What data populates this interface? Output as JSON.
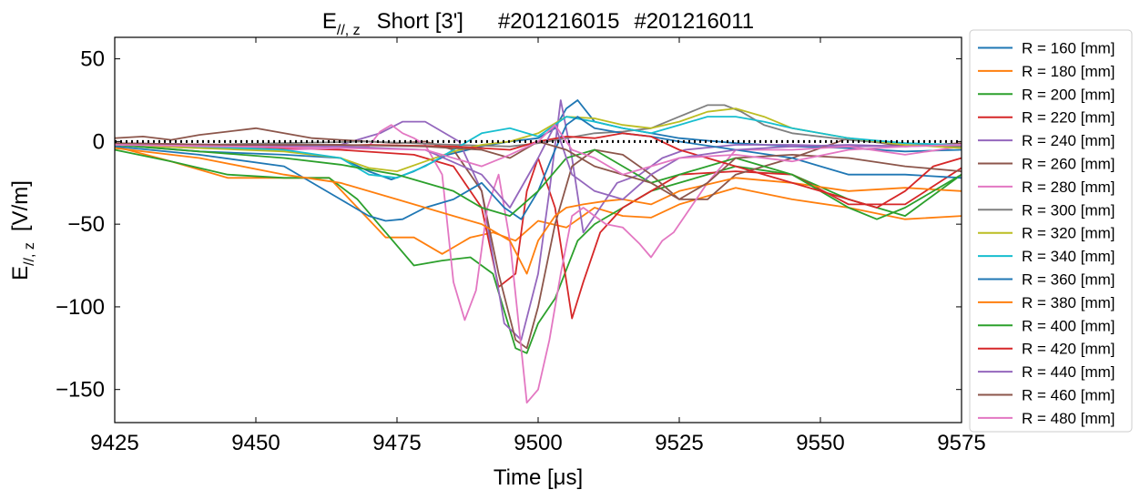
{
  "chart_data": {
    "type": "line",
    "title": {
      "main": "E",
      "main_sub": "//, z",
      "rest": "Short [3']",
      "shot1": "#201216015",
      "shot2": "#201216011"
    },
    "xlabel": "Time [μs]",
    "ylabel": {
      "main": "E",
      "sub": "//, z",
      "unit": "[V/m]"
    },
    "xlim": [
      9425,
      9575
    ],
    "ylim": [
      -170,
      63
    ],
    "xticks": [
      9425,
      9450,
      9475,
      9500,
      9525,
      9550,
      9575
    ],
    "yticks": [
      50,
      0,
      -50,
      -100,
      -150
    ],
    "ytick_labels": [
      "50",
      "0",
      "−50",
      "−100",
      "−150"
    ],
    "grid": false,
    "legend_position": "outside-right",
    "colors": [
      "#1f77b4",
      "#ff7f0e",
      "#2ca02c",
      "#d62728",
      "#9467bd",
      "#8c564b",
      "#e377c2",
      "#7f7f7f",
      "#bcbd22",
      "#17becf"
    ],
    "zero_line": {
      "y": 0,
      "style": "dotted",
      "color": "#000000"
    },
    "series": [
      {
        "name": "R = 160  [mm]",
        "x": [
          9425,
          9440,
          9455,
          9465,
          9470,
          9474,
          9478,
          9484,
          9490,
          9495,
          9500,
          9503,
          9505,
          9507,
          9510,
          9515,
          9520,
          9525,
          9535,
          9545,
          9555,
          9565,
          9575
        ],
        "y": [
          -2,
          -6,
          -8,
          -10,
          -18,
          -23,
          -18,
          -8,
          -3,
          0,
          2,
          8,
          20,
          25,
          12,
          8,
          5,
          2,
          -1,
          -3,
          -4,
          -6,
          -5
        ]
      },
      {
        "name": "R = 180  [mm]",
        "x": [
          9425,
          9435,
          9445,
          9455,
          9463,
          9468,
          9473,
          9478,
          9483,
          9488,
          9492,
          9496,
          9500,
          9505,
          9510,
          9515,
          9520,
          9525,
          9535,
          9545,
          9555,
          9565,
          9575
        ],
        "y": [
          -3,
          -12,
          -22,
          -22,
          -22,
          -40,
          -58,
          -58,
          -68,
          -58,
          -55,
          -60,
          -48,
          -52,
          -40,
          -45,
          -46,
          -38,
          -28,
          -35,
          -40,
          -47,
          -45
        ]
      },
      {
        "name": "R = 200  [mm]",
        "x": [
          9425,
          9435,
          9445,
          9455,
          9463,
          9468,
          9473,
          9478,
          9483,
          9488,
          9492,
          9496,
          9498,
          9500,
          9503,
          9507,
          9510,
          9515,
          9520,
          9525,
          9535,
          9545,
          9555,
          9565,
          9575
        ],
        "y": [
          -5,
          -12,
          -20,
          -22,
          -22,
          -35,
          -55,
          -75,
          -72,
          -70,
          -80,
          -125,
          -128,
          -110,
          -95,
          -60,
          -50,
          -40,
          -30,
          -25,
          -15,
          -20,
          -35,
          -45,
          -20
        ]
      },
      {
        "name": "R = 220  [mm]",
        "x": [
          9425,
          9445,
          9465,
          9478,
          9485,
          9490,
          9493,
          9496,
          9498,
          9500,
          9503,
          9506,
          9508,
          9511,
          9515,
          9520,
          9525,
          9535,
          9545,
          9555,
          9565,
          9575
        ],
        "y": [
          -1,
          -3,
          -5,
          -8,
          -15,
          -40,
          -88,
          -80,
          -30,
          -10,
          -40,
          -107,
          -85,
          -55,
          -40,
          -30,
          -20,
          -18,
          -20,
          -38,
          -38,
          -16
        ]
      },
      {
        "name": "R = 240  [mm]",
        "x": [
          9425,
          9445,
          9465,
          9472,
          9476,
          9480,
          9486,
          9490,
          9494,
          9497,
          9500,
          9502,
          9504,
          9506,
          9508,
          9511,
          9514,
          9518,
          9522,
          9526,
          9535,
          9545,
          9555,
          9575
        ],
        "y": [
          -1,
          -2,
          -2,
          5,
          12,
          12,
          0,
          -30,
          -110,
          -120,
          -80,
          -30,
          25,
          -10,
          -55,
          -40,
          -25,
          -20,
          -10,
          -5,
          -2,
          -2,
          -3,
          -2
        ]
      },
      {
        "name": "R = 260  [mm]",
        "x": [
          9425,
          9430,
          9435,
          9440,
          9445,
          9450,
          9455,
          9460,
          9465,
          9470,
          9475,
          9480,
          9485,
          9490,
          9493,
          9496,
          9498,
          9500,
          9503,
          9506,
          9510,
          9515,
          9520,
          9525,
          9530,
          9535,
          9545,
          9555,
          9565,
          9575
        ],
        "y": [
          2,
          3,
          1,
          4,
          6,
          8,
          5,
          2,
          1,
          0,
          -1,
          0,
          -5,
          -30,
          -80,
          -120,
          -125,
          -100,
          -50,
          -15,
          -5,
          -8,
          -20,
          -35,
          -35,
          -20,
          -10,
          2,
          -3,
          -1
        ]
      },
      {
        "name": "R = 280  [mm]",
        "x": [
          9425,
          9440,
          9455,
          9465,
          9470,
          9472,
          9474,
          9476,
          9478,
          9480,
          9483,
          9485,
          9487,
          9489,
          9491,
          9493,
          9495,
          9497,
          9498,
          9500,
          9502,
          9504,
          9506,
          9508,
          9510,
          9512,
          9515,
          9518,
          9520,
          9522,
          9524,
          9526,
          9530,
          9535,
          9545,
          9555,
          9565,
          9575
        ],
        "y": [
          -2,
          -4,
          -5,
          -4,
          -3,
          6,
          10,
          5,
          2,
          -2,
          -20,
          -85,
          -108,
          -90,
          -40,
          -20,
          -60,
          -125,
          -158,
          -150,
          -120,
          -80,
          -45,
          -40,
          -45,
          -50,
          -52,
          -62,
          -70,
          -60,
          -55,
          -45,
          -25,
          -5,
          -5,
          -3,
          -8,
          -3
        ]
      },
      {
        "name": "R = 300  [mm]",
        "x": [
          9425,
          9440,
          9455,
          9470,
          9485,
          9495,
          9500,
          9505,
          9510,
          9515,
          9520,
          9525,
          9530,
          9533,
          9536,
          9540,
          9545,
          9555,
          9565,
          9575
        ],
        "y": [
          -1,
          -2,
          -1,
          0,
          -2,
          -3,
          -1,
          2,
          5,
          6,
          8,
          15,
          22,
          22,
          18,
          10,
          5,
          1,
          -2,
          -3
        ]
      },
      {
        "name": "R = 320  [mm]",
        "x": [
          9425,
          9440,
          9455,
          9465,
          9470,
          9475,
          9480,
          9485,
          9490,
          9495,
          9500,
          9505,
          9510,
          9515,
          9520,
          9525,
          9530,
          9535,
          9540,
          9545,
          9555,
          9565,
          9575
        ],
        "y": [
          -2,
          -4,
          -6,
          -10,
          -16,
          -18,
          -12,
          -6,
          -2,
          0,
          5,
          15,
          14,
          10,
          8,
          12,
          18,
          20,
          15,
          8,
          2,
          -2,
          -4
        ]
      },
      {
        "name": "R = 340  [mm]",
        "x": [
          9425,
          9440,
          9455,
          9465,
          9470,
          9475,
          9480,
          9485,
          9490,
          9495,
          9500,
          9505,
          9510,
          9515,
          9520,
          9525,
          9530,
          9535,
          9540,
          9545,
          9555,
          9565,
          9575
        ],
        "y": [
          -1,
          -3,
          -5,
          -10,
          -20,
          -22,
          -15,
          -5,
          5,
          8,
          3,
          15,
          12,
          8,
          5,
          10,
          15,
          15,
          12,
          8,
          2,
          -1,
          -2
        ]
      },
      {
        "name": "R = 360  [mm]",
        "x": [
          9425,
          9440,
          9455,
          9465,
          9470,
          9473,
          9476,
          9480,
          9485,
          9490,
          9494,
          9497,
          9500,
          9503,
          9505,
          9507,
          9510,
          9515,
          9520,
          9525,
          9535,
          9545,
          9555,
          9565,
          9575
        ],
        "y": [
          -3,
          -8,
          -15,
          -35,
          -45,
          -48,
          -47,
          -40,
          -35,
          -25,
          -40,
          -47,
          -30,
          -5,
          10,
          15,
          8,
          5,
          3,
          0,
          -5,
          -10,
          -20,
          -20,
          -22
        ]
      },
      {
        "name": "R = 380  [mm]",
        "x": [
          9425,
          9440,
          9455,
          9465,
          9475,
          9480,
          9485,
          9490,
          9495,
          9498,
          9500,
          9503,
          9505,
          9508,
          9512,
          9515,
          9520,
          9525,
          9535,
          9545,
          9555,
          9565,
          9575
        ],
        "y": [
          -4,
          -10,
          -20,
          -25,
          -35,
          -40,
          -45,
          -50,
          -60,
          -80,
          -60,
          -45,
          -40,
          -38,
          -36,
          -35,
          -38,
          -30,
          -22,
          -25,
          -30,
          -28,
          -30
        ]
      },
      {
        "name": "R = 400  [mm]",
        "x": [
          9425,
          9440,
          9455,
          9465,
          9475,
          9485,
          9490,
          9495,
          9500,
          9505,
          9510,
          9515,
          9520,
          9525,
          9535,
          9545,
          9550,
          9555,
          9560,
          9565,
          9575
        ],
        "y": [
          -2,
          -6,
          -10,
          -14,
          -20,
          -30,
          -40,
          -45,
          -30,
          -10,
          -5,
          -15,
          -25,
          -20,
          -10,
          -20,
          -30,
          -40,
          -47,
          -40,
          -20
        ]
      },
      {
        "name": "R = 420  [mm]",
        "x": [
          9425,
          9440,
          9455,
          9470,
          9485,
          9495,
          9500,
          9505,
          9510,
          9515,
          9520,
          9525,
          9535,
          9545,
          9550,
          9555,
          9560,
          9565,
          9570,
          9575
        ],
        "y": [
          -1,
          -2,
          -3,
          -2,
          -3,
          -5,
          0,
          3,
          2,
          5,
          3,
          -5,
          -15,
          -25,
          -30,
          -35,
          -40,
          -30,
          -15,
          -10
        ]
      },
      {
        "name": "R = 440  [mm]",
        "x": [
          9425,
          9445,
          9465,
          9480,
          9490,
          9495,
          9500,
          9503,
          9506,
          9510,
          9515,
          9520,
          9525,
          9535,
          9545,
          9555,
          9565,
          9575
        ],
        "y": [
          -1,
          -2,
          -3,
          -5,
          -20,
          -40,
          -10,
          10,
          -20,
          -30,
          -35,
          -20,
          -10,
          -5,
          -3,
          -2,
          -3,
          -2
        ]
      },
      {
        "name": "R = 460  [mm]",
        "x": [
          9425,
          9445,
          9465,
          9480,
          9490,
          9495,
          9500,
          9505,
          9510,
          9515,
          9520,
          9525,
          9530,
          9535,
          9545,
          9555,
          9565,
          9575
        ],
        "y": [
          -1,
          -2,
          -2,
          -3,
          -5,
          -10,
          0,
          -5,
          -15,
          -20,
          -25,
          -35,
          -25,
          -10,
          -8,
          -10,
          -15,
          -18
        ]
      },
      {
        "name": "R = 480  [mm]",
        "x": [
          9425,
          9445,
          9465,
          9480,
          9490,
          9495,
          9500,
          9503,
          9506,
          9510,
          9515,
          9520,
          9525,
          9535,
          9545,
          9555,
          9565,
          9575
        ],
        "y": [
          -2,
          -3,
          -4,
          -5,
          -15,
          -8,
          0,
          10,
          -5,
          -10,
          -20,
          -15,
          -10,
          -8,
          -12,
          -5,
          -3,
          -2
        ]
      }
    ]
  }
}
